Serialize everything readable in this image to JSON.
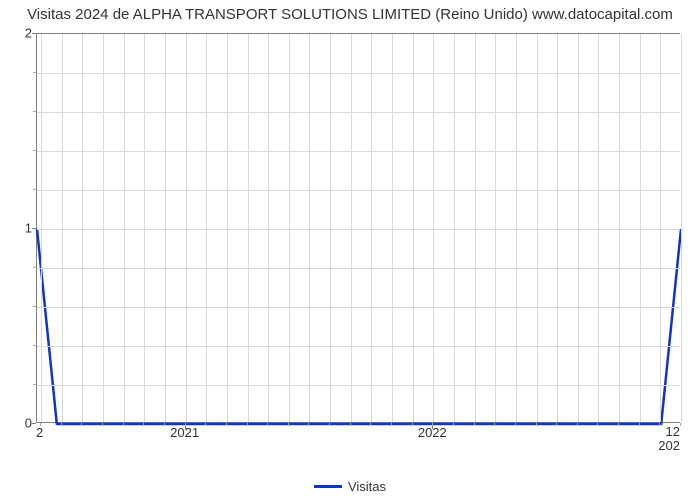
{
  "chart": {
    "type": "line",
    "title": "Visitas 2024 de ALPHA TRANSPORT SOLUTIONS LIMITED (Reino Unido) www.datocapital.com",
    "title_fontsize": 15,
    "title_color": "#333333",
    "background_color": "#ffffff",
    "plot_border_color": "#808080",
    "grid_color": "#d9d9d9",
    "label_fontsize": 13,
    "label_color": "#333333",
    "y_axis": {
      "min": 0,
      "max": 2,
      "major_ticks": [
        0,
        1,
        2
      ],
      "minor_divisions_per_interval": 5
    },
    "x_axis": {
      "domain_start": 2020.4,
      "domain_end": 2023.0,
      "major_tick_positions": [
        2021,
        2022
      ],
      "major_tick_labels": [
        "2021",
        "2022"
      ],
      "minor_tick_step_months": 1,
      "secondary_left_label": "2",
      "secondary_right_label": "12\n202"
    },
    "series": [
      {
        "name": "Visitas",
        "color": "#1034c6",
        "line_width": 2.5,
        "points": [
          {
            "x": 2020.4,
            "y": 1.0
          },
          {
            "x": 2020.48,
            "y": 0.0
          },
          {
            "x": 2022.92,
            "y": 0.0
          },
          {
            "x": 2023.0,
            "y": 1.0
          }
        ]
      }
    ],
    "legend": {
      "position": "bottom-center",
      "items": [
        {
          "label": "Visitas",
          "color": "#1034c6"
        }
      ]
    }
  }
}
